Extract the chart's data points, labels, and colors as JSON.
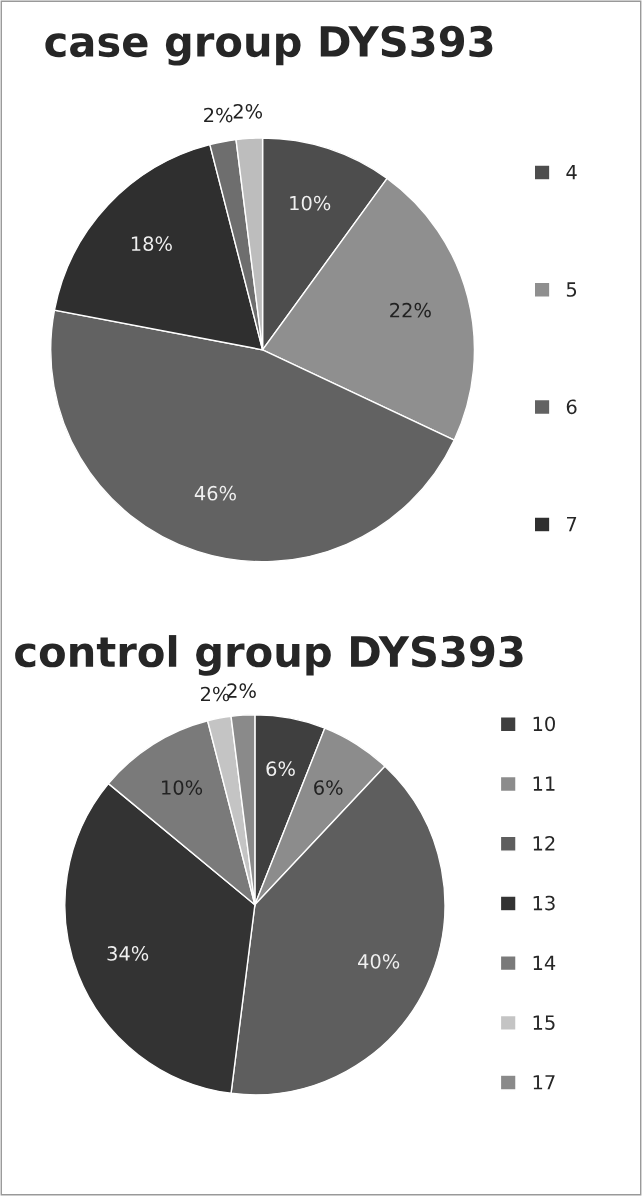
{
  "chart_data": [
    {
      "type": "pie",
      "title": "case group DYS393",
      "categories": [
        "4",
        "5",
        "6",
        "7",
        null,
        null
      ],
      "values": [
        10,
        22,
        46,
        18,
        2,
        2
      ],
      "value_labels": [
        "10%",
        "22%",
        "46%",
        "18%",
        "2%",
        "2%"
      ],
      "colors": [
        "#4d4d4d",
        "#8f8f8f",
        "#626262",
        "#2f2f2f",
        "#6e6e6e",
        "#bdbdbd"
      ],
      "legend": "right"
    },
    {
      "type": "pie",
      "title": "control group DYS393",
      "categories": [
        "10",
        "11",
        "12",
        "13",
        "14",
        "15",
        "17"
      ],
      "values": [
        6,
        6,
        40,
        34,
        10,
        2,
        2
      ],
      "value_labels": [
        "6%",
        "6%",
        "40%",
        "34%",
        "10%",
        "2%",
        "2%"
      ],
      "colors": [
        "#3f3f3f",
        "#8c8c8c",
        "#5e5e5e",
        "#333333",
        "#7a7a7a",
        "#c4c4c4",
        "#8a8a8a"
      ],
      "legend": "right"
    }
  ]
}
